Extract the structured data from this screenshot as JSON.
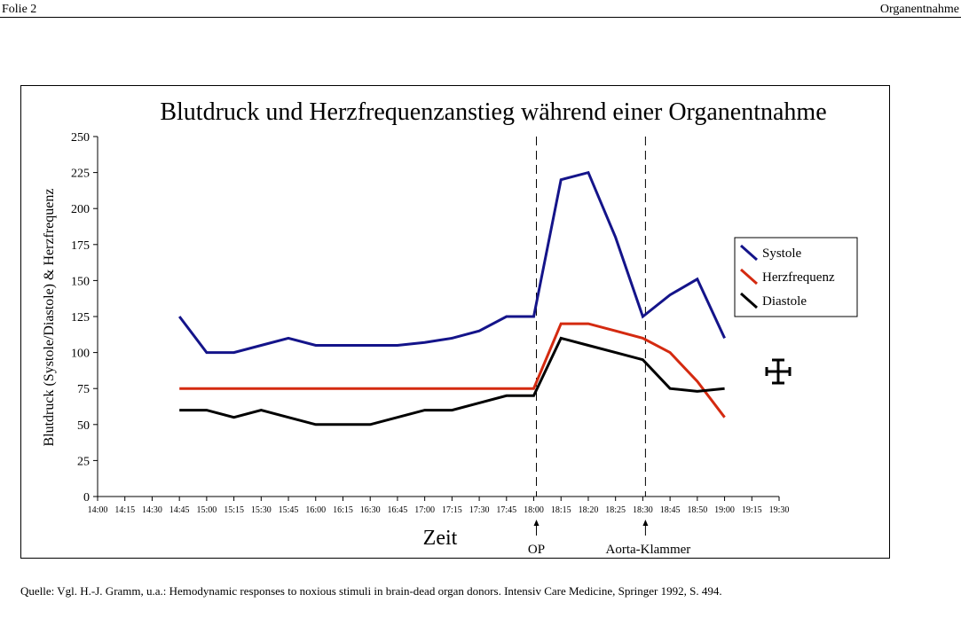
{
  "header": {
    "left": "Folie 2",
    "right": "Organentnahme"
  },
  "source": "Quelle: Vgl. H.-J. Gramm, u.a.: Hemodynamic responses to noxious stimuli in brain-dead organ donors. Intensiv Care Medicine, Springer 1992, S. 494.",
  "chart_data": {
    "type": "line",
    "title": "Blutdruck und Herzfrequenzanstieg während einer Organentnahme",
    "xlabel": "Zeit",
    "ylabel": "Blutdruck (Systole/Diastole) & Herzfrequenz",
    "ylim": [
      0,
      250
    ],
    "yticks": [
      "0",
      "25",
      "50",
      "75",
      "100",
      "125",
      "150",
      "175",
      "200",
      "225",
      "250"
    ],
    "categories": [
      "14:00",
      "14:15",
      "14:30",
      "14:45",
      "15:00",
      "15:15",
      "15:30",
      "15:45",
      "16:00",
      "16:15",
      "16:30",
      "16:45",
      "17:00",
      "17:15",
      "17:30",
      "17:45",
      "18:00",
      "18:15",
      "18:20",
      "18:25",
      "18:30",
      "18:45",
      "18:50",
      "19:00",
      "19:15",
      "19:30"
    ],
    "series": [
      {
        "name": "Systole",
        "color": "#14148a",
        "values": [
          null,
          null,
          null,
          125,
          100,
          100,
          105,
          110,
          105,
          105,
          105,
          105,
          107,
          110,
          115,
          125,
          125,
          220,
          225,
          180,
          125,
          140,
          151,
          110,
          null,
          null
        ]
      },
      {
        "name": "Herzfrequenz",
        "color": "#d42a10",
        "values": [
          null,
          null,
          null,
          75,
          75,
          75,
          75,
          75,
          75,
          75,
          75,
          75,
          75,
          75,
          75,
          75,
          75,
          120,
          120,
          115,
          110,
          100,
          80,
          55,
          null,
          null
        ]
      },
      {
        "name": "Diastole",
        "color": "#000000",
        "values": [
          null,
          null,
          null,
          60,
          60,
          55,
          60,
          55,
          50,
          50,
          50,
          55,
          60,
          60,
          65,
          70,
          70,
          110,
          105,
          100,
          95,
          75,
          73,
          75,
          null,
          null
        ]
      }
    ],
    "events": [
      {
        "label": "OP",
        "category": "18:00"
      },
      {
        "label": "Aorta-Klammer",
        "category": "18:30"
      }
    ],
    "grid": false,
    "legend": "right"
  }
}
